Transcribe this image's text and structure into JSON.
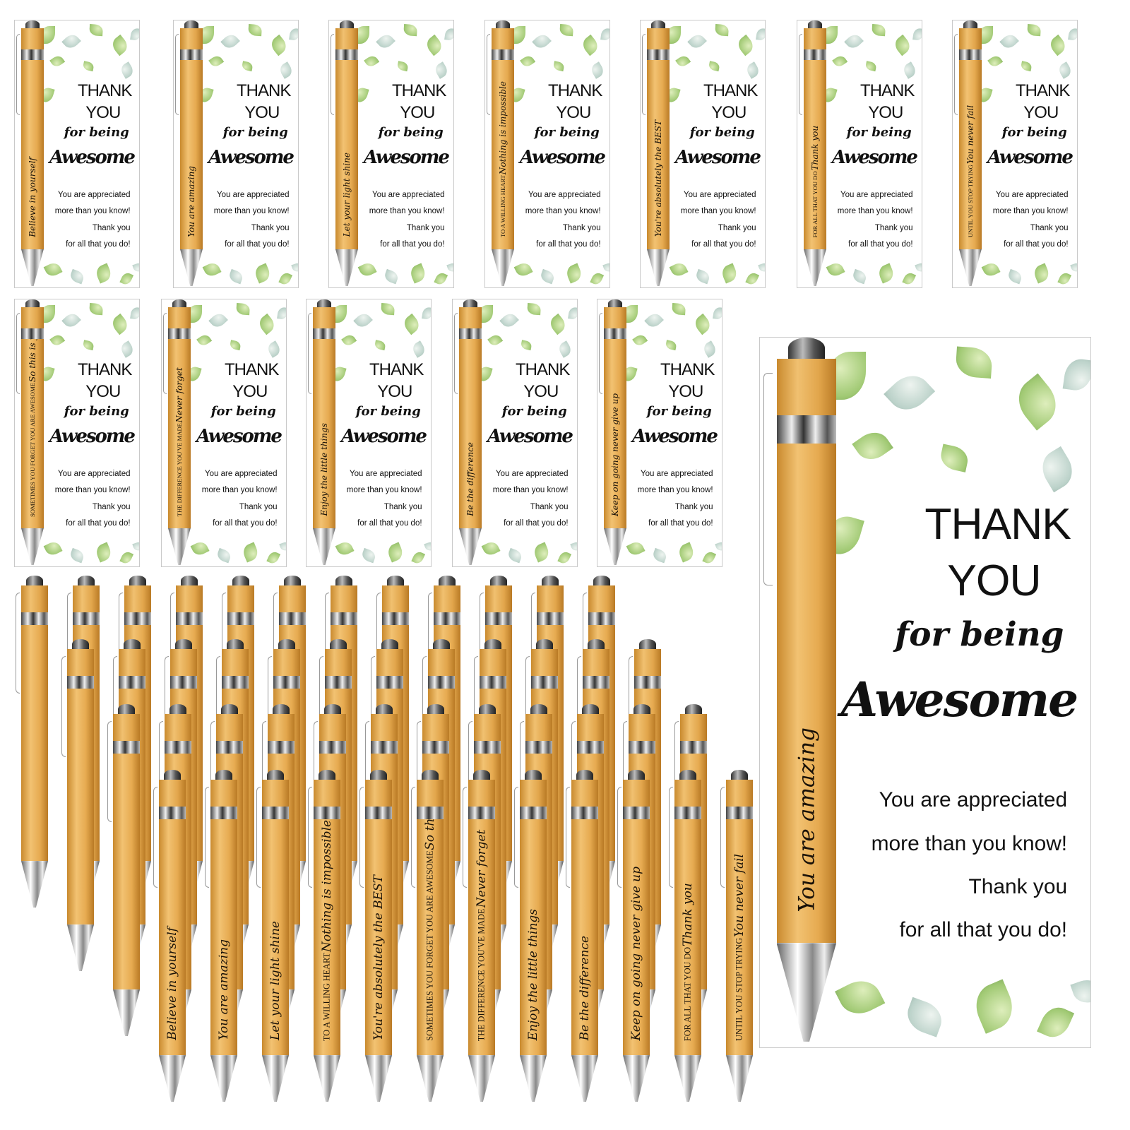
{
  "card": {
    "thank": "THANK",
    "you": "YOU",
    "for_being": "for being",
    "awesome": "Awesome",
    "line1": "You are appreciated",
    "line2": "more than you know!",
    "line3": "Thank you",
    "line4": "for all that you do!"
  },
  "messages": [
    {
      "main": "Believe in yourself",
      "sub": ""
    },
    {
      "main": "You are amazing",
      "sub": ""
    },
    {
      "main": "Let your light shine",
      "sub": ""
    },
    {
      "main": "Nothing is impossible",
      "sub": "TO A WILLING HEART"
    },
    {
      "main": "You're absolutely the BEST",
      "sub": ""
    },
    {
      "main": "So this is your reminder",
      "sub": "SOMETIMES YOU FORGET YOU ARE AWESOME"
    },
    {
      "main": "Never forget",
      "sub": "THE DIFFERENCE YOU'VE MADE"
    },
    {
      "main": "Enjoy the little things",
      "sub": ""
    },
    {
      "main": "Be the difference",
      "sub": ""
    },
    {
      "main": "Keep on going never give up",
      "sub": ""
    },
    {
      "main": "Thank you",
      "sub": "FOR ALL THAT YOU DO"
    },
    {
      "main": "You never fail",
      "sub": "UNTIL YOU STOP TRYING"
    }
  ],
  "top_row_cards": [
    0,
    1,
    2,
    3,
    4,
    10,
    11
  ],
  "second_row_cards": [
    5,
    6,
    7,
    8,
    9
  ],
  "featured_card": 1,
  "colors": {
    "bamboo": "#e6aa50",
    "leaf_green": "#8fbf5a",
    "text": "#111111"
  }
}
